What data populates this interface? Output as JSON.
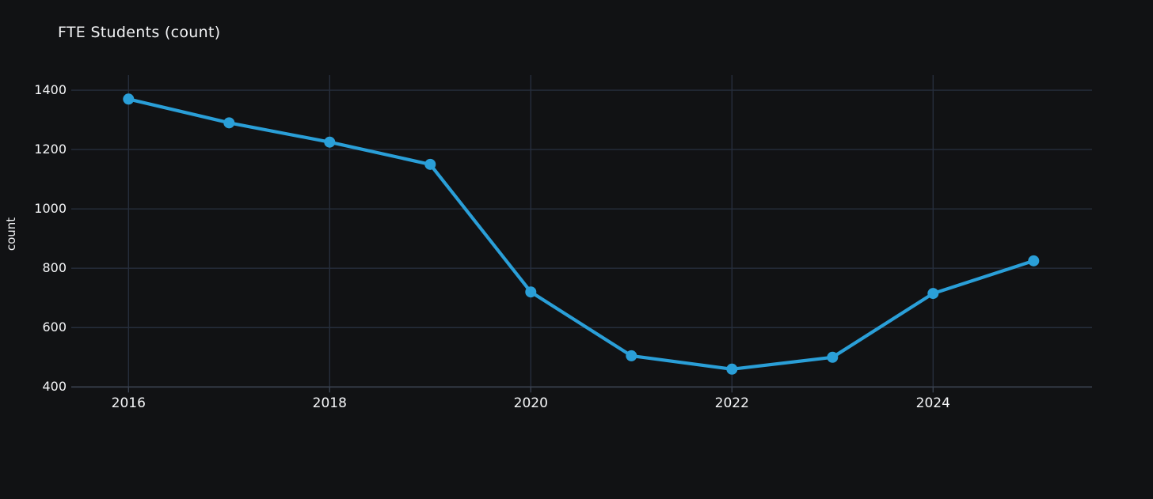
{
  "chart": {
    "title": "FTE Students (count)",
    "y_axis_title": "count",
    "colors": {
      "background": "#111214",
      "grid": "#262e3c",
      "axis_line": "#3a4250",
      "text": "#f2f3f5",
      "series": "#2a9fd8"
    }
  },
  "chart_data": {
    "type": "line",
    "title": "FTE Students (count)",
    "xlabel": "",
    "ylabel": "count",
    "x": [
      2016,
      2017,
      2018,
      2019,
      2020,
      2021,
      2022,
      2023,
      2024,
      2025
    ],
    "series": [
      {
        "name": "FTE Students",
        "values": [
          1370,
          1290,
          1225,
          1150,
          720,
          505,
          460,
          500,
          715,
          825
        ]
      }
    ],
    "x_ticks": [
      2016,
      2018,
      2020,
      2022,
      2024
    ],
    "y_ticks": [
      400,
      600,
      800,
      1000,
      1200,
      1400
    ],
    "xlim": [
      2015.43,
      2025.58
    ],
    "ylim": [
      400,
      1450
    ],
    "grid": true,
    "legend_position": "none",
    "marker": "circle",
    "line_color": "#2a9fd8"
  }
}
